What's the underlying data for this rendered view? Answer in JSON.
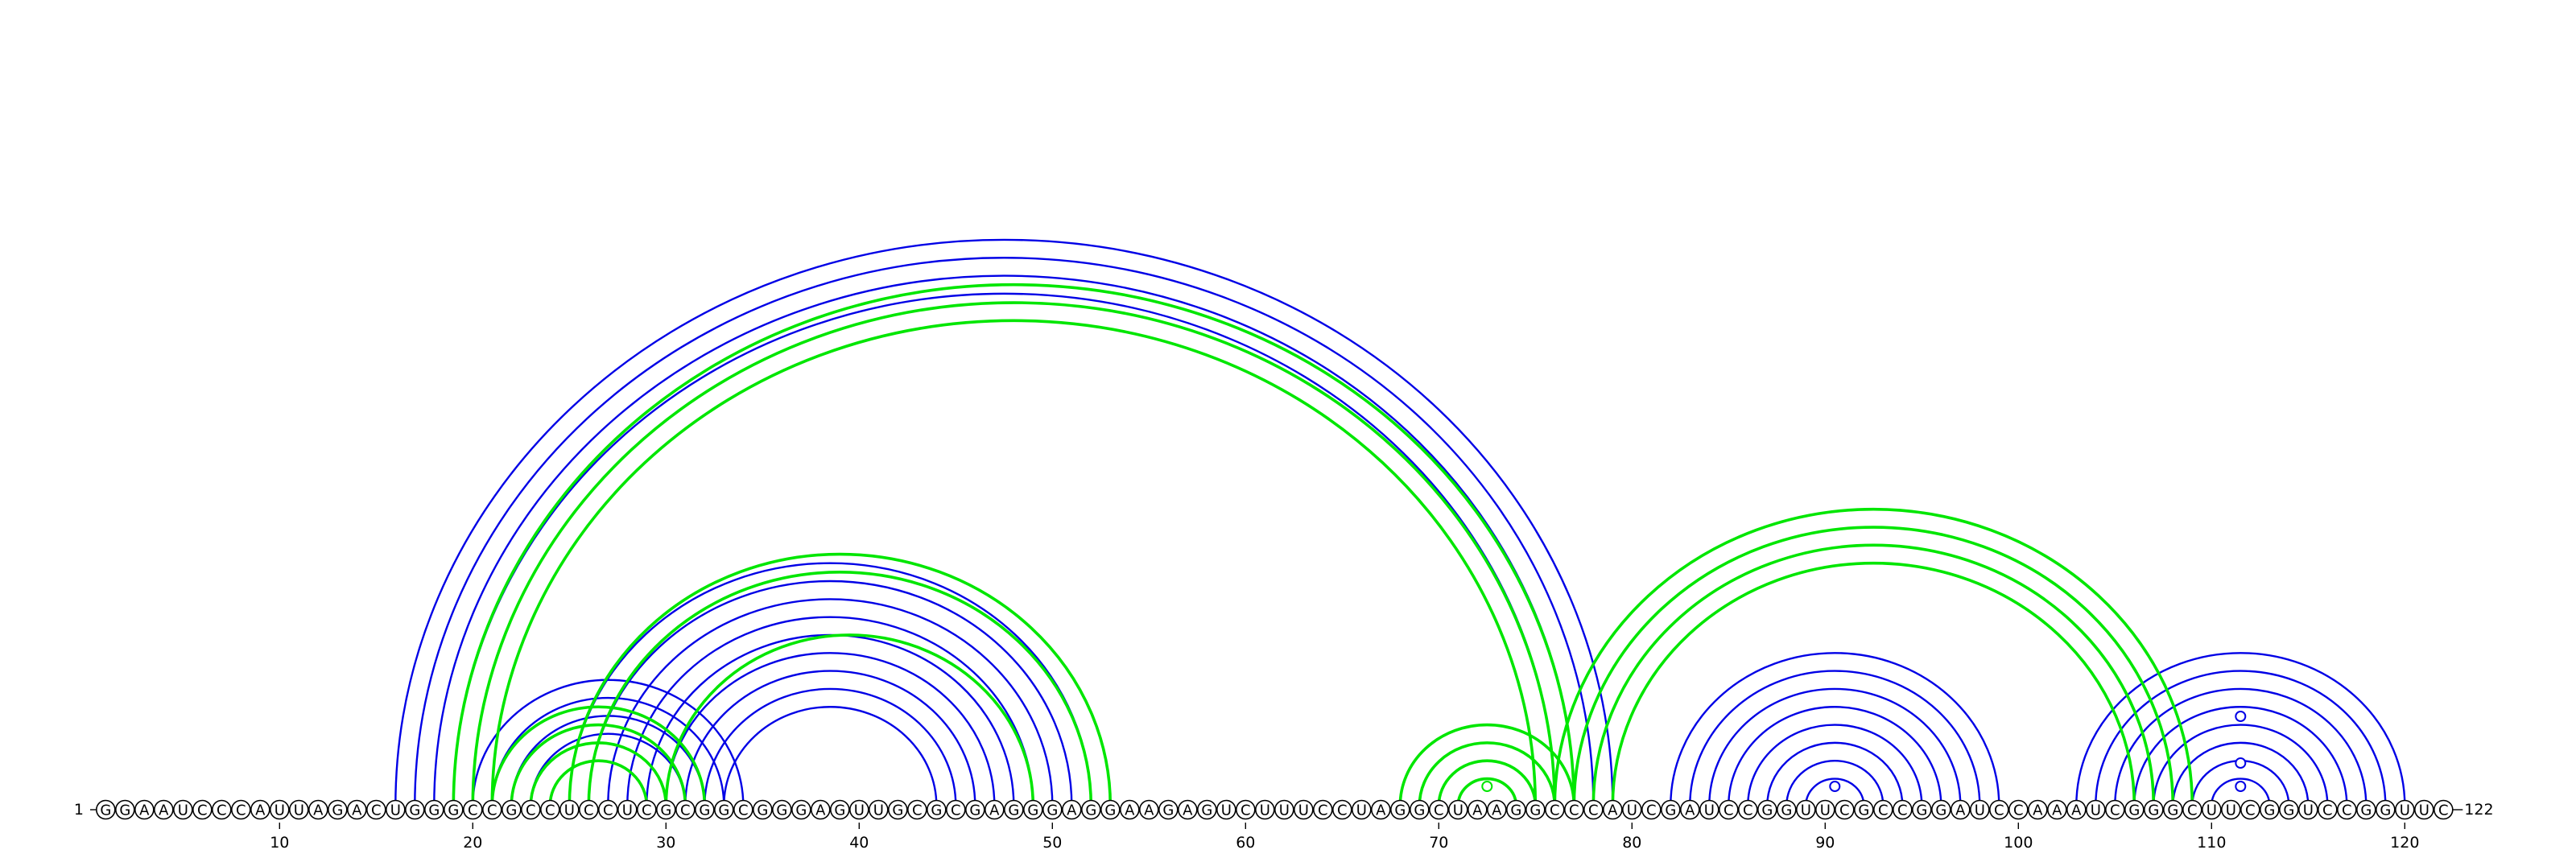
{
  "sequence": "GGAAUCCCAUUAGACUGGGCCGCCUCCUCGCGGCGGGAGUUGCGCGAGGGAGGAAGAGUCUUUCCUAGGCUAAGGCCCAUCGAUCCGGUUCGCCGGAUCCAAAUCGGGCUUCGGUCCGGUUC",
  "start_label": "1",
  "end_label": "122",
  "tick_positions": [
    10,
    20,
    30,
    40,
    50,
    60,
    70,
    80,
    90,
    100,
    110,
    120
  ],
  "colors": {
    "blue": "#0000e6",
    "green": "#00e600"
  },
  "chart_data": {
    "type": "arc-diagram",
    "length": 122,
    "blue_helices": [
      {
        "i": 16,
        "j": 79,
        "count": 4
      },
      {
        "i": 20,
        "j": 34,
        "count": 4
      },
      {
        "i": 25,
        "j": 52,
        "count": 9
      },
      {
        "i": 82,
        "j": 99,
        "count": 8
      },
      {
        "i": 103,
        "j": 120,
        "count": 8
      }
    ],
    "green_helices": [
      {
        "i": 19,
        "j": 77,
        "count": 3
      },
      {
        "i": 21,
        "j": 32,
        "count": 4
      },
      {
        "i": 25,
        "j": 53,
        "count": 2
      },
      {
        "i": 30,
        "j": 49,
        "count": 1
      },
      {
        "i": 68,
        "j": 77,
        "count": 4
      },
      {
        "i": 76,
        "j": 109,
        "count": 4
      }
    ],
    "loop_markers": [
      {
        "x": 72.5,
        "color": "green",
        "level": 1
      },
      {
        "x": 90.5,
        "color": "blue",
        "level": 1
      },
      {
        "x": 111.5,
        "color": "blue",
        "level": 1
      },
      {
        "x": 111.5,
        "color": "blue",
        "level": 2
      },
      {
        "x": 111.5,
        "color": "blue",
        "level": 4
      }
    ]
  }
}
